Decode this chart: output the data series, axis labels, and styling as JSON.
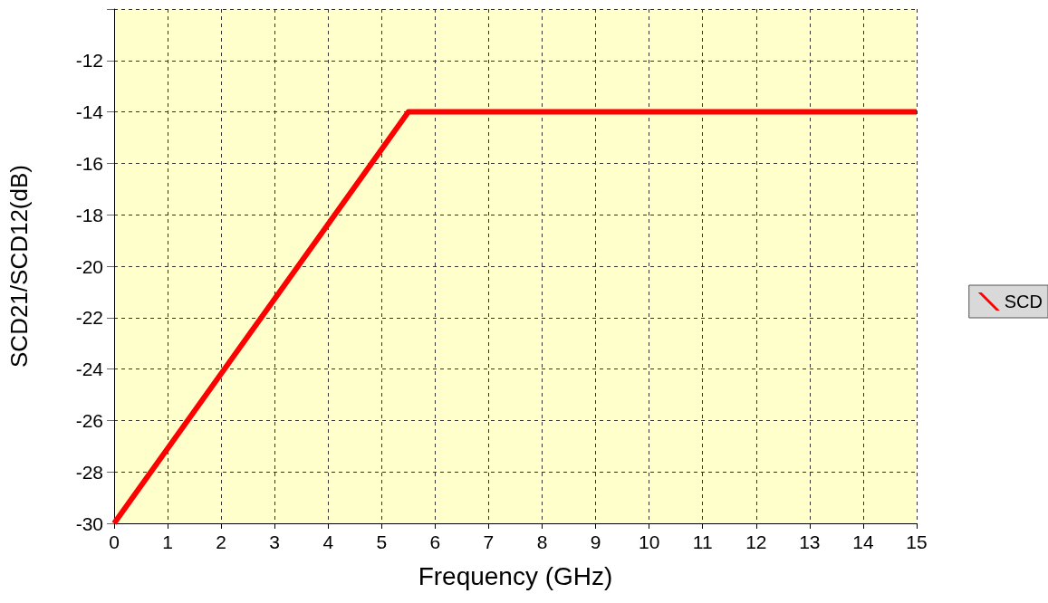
{
  "chart_data": {
    "type": "line",
    "xlabel": "Frequency (GHz)",
    "ylabel": "SCD21/SCD12(dB)",
    "series": [
      {
        "name": "SCD",
        "color": "#ff0000",
        "x": [
          0,
          5.5,
          15
        ],
        "values": [
          -30,
          -14,
          -14
        ]
      }
    ],
    "xlim": [
      0,
      15
    ],
    "xticks": [
      0,
      1,
      2,
      3,
      4,
      5,
      6,
      7,
      8,
      9,
      10,
      11,
      12,
      13,
      14,
      15
    ],
    "ylim": [
      -30,
      -10
    ],
    "yticks": [
      -30,
      -28,
      -26,
      -24,
      -22,
      -20,
      -18,
      -16,
      -14,
      -12,
      {
        "value": -10,
        "label": null
      }
    ],
    "grid": true,
    "legend": "right",
    "marker": "none",
    "line_style": "solid"
  }
}
